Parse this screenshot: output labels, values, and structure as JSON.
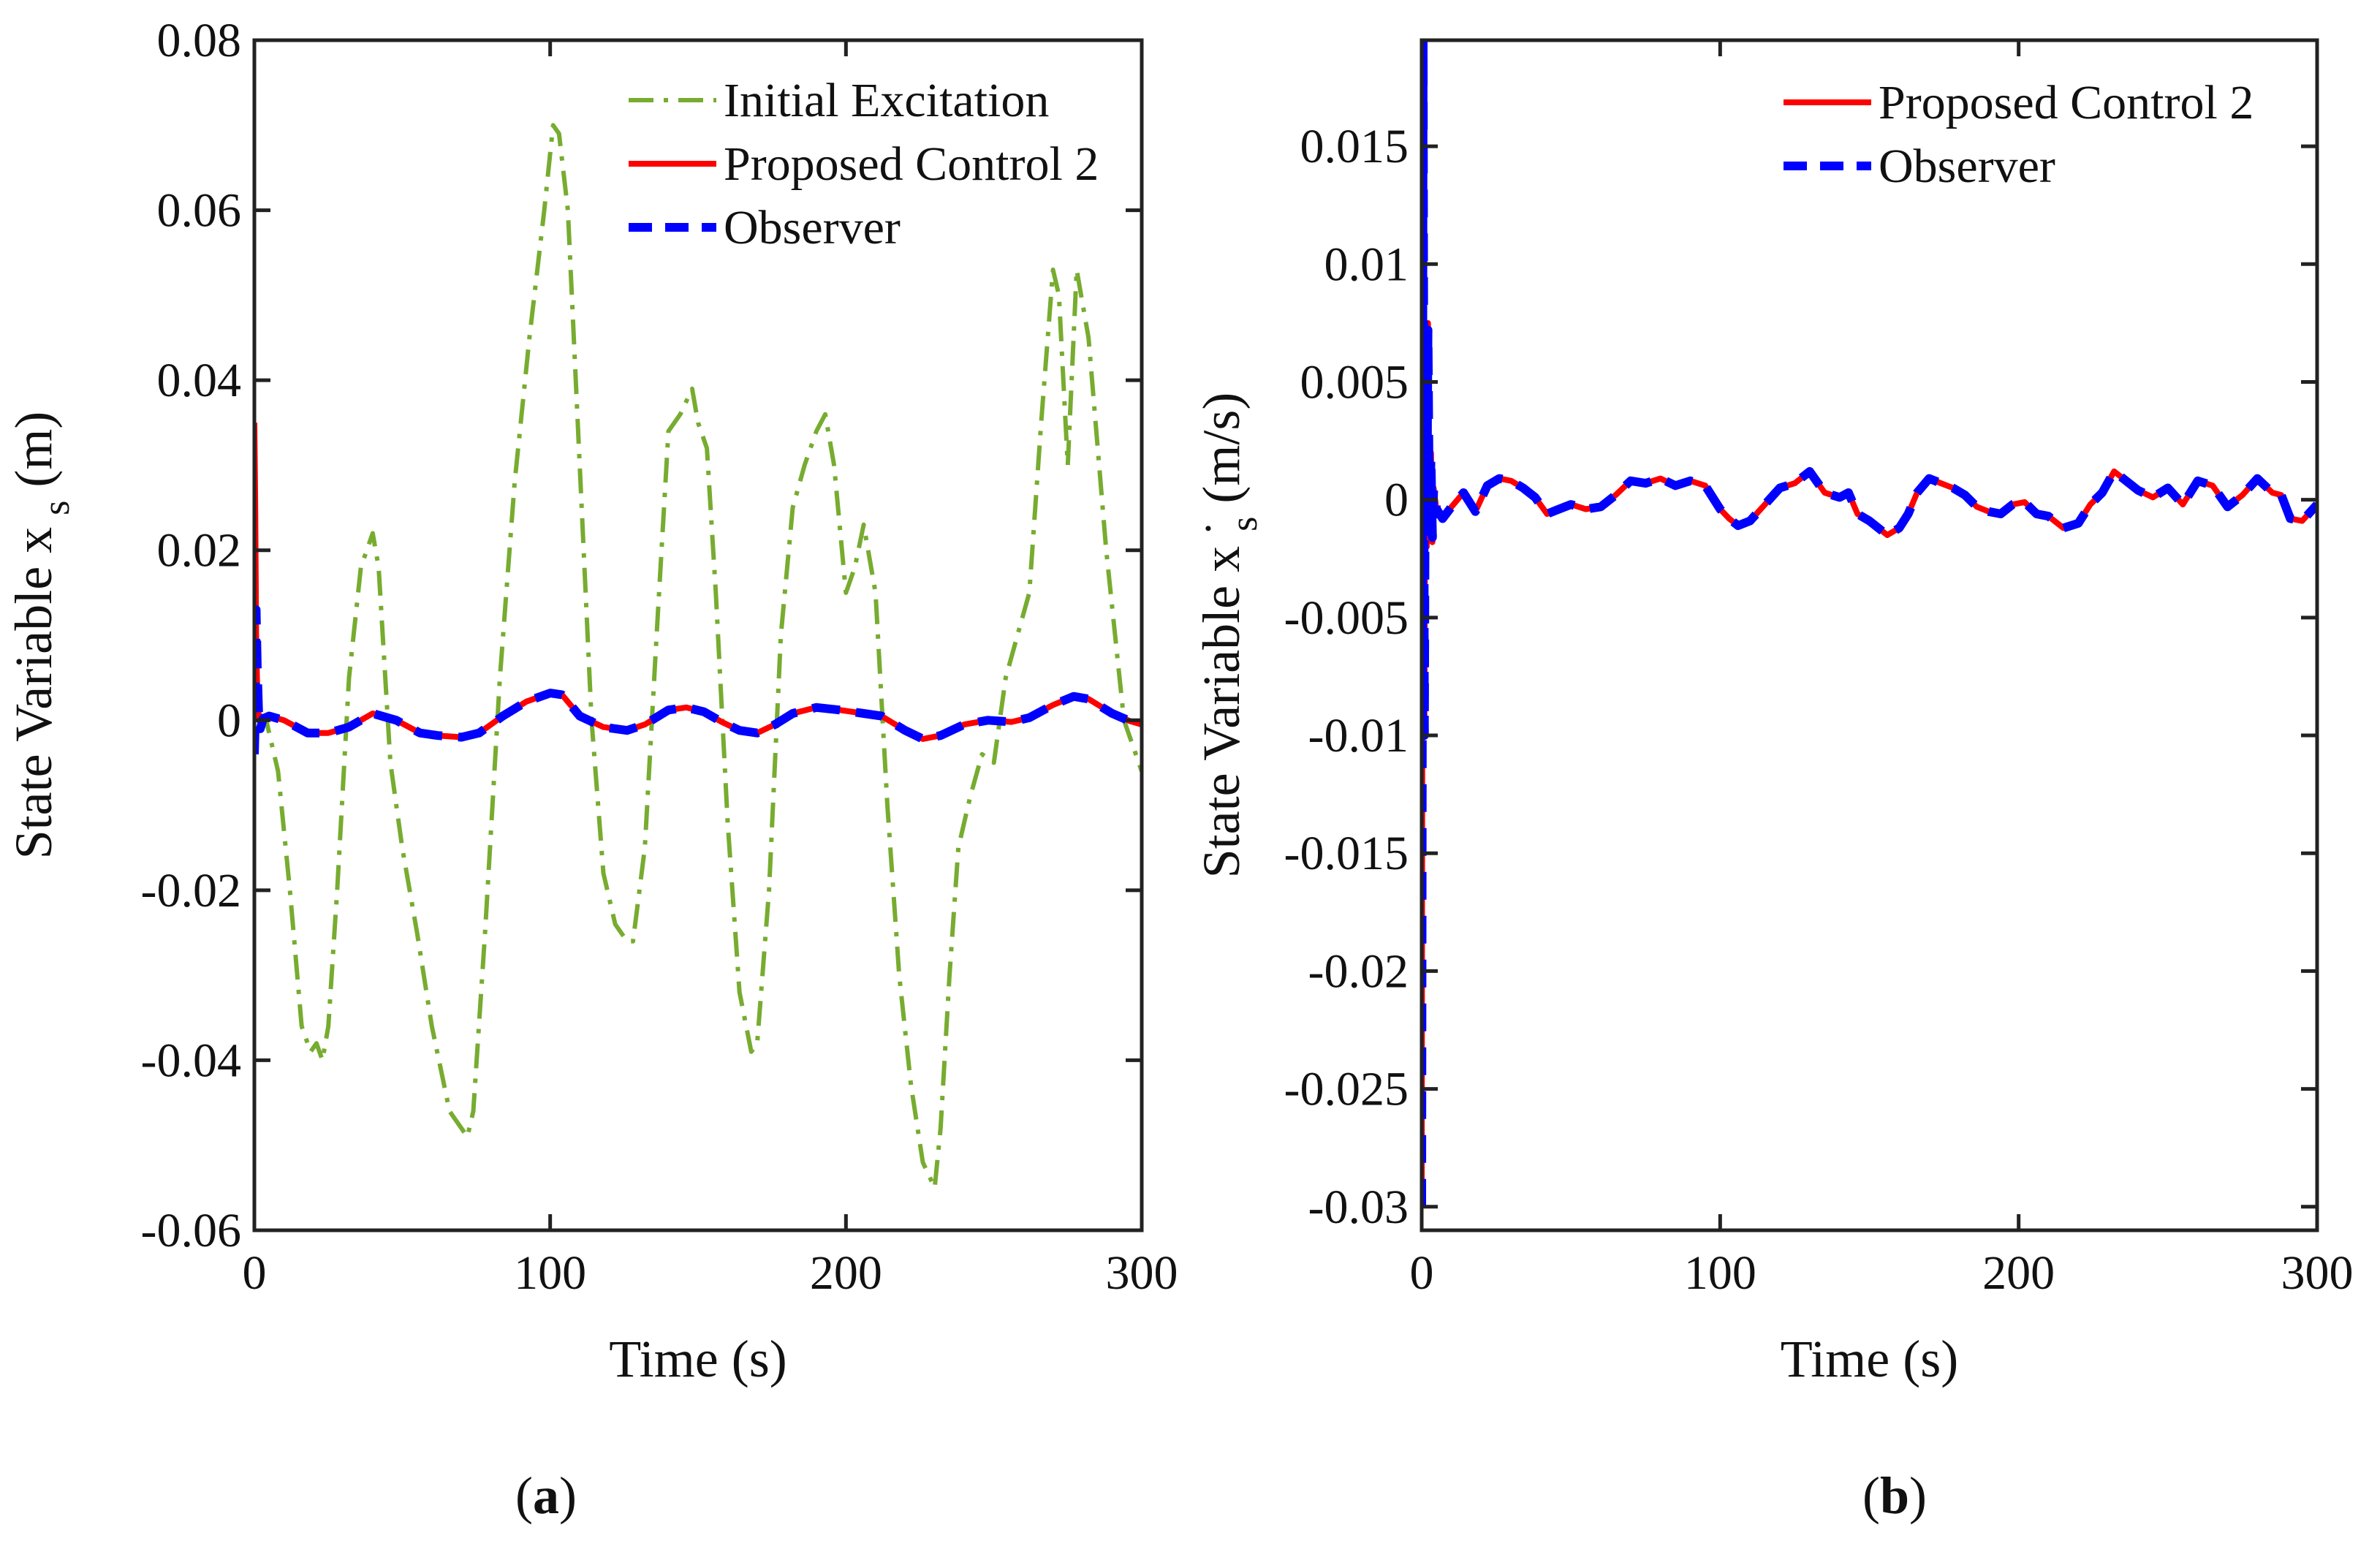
{
  "chart_data": [
    {
      "id": "a",
      "type": "line",
      "panel_label": "a",
      "xlabel": "Time (s)",
      "ylabel": "State Variable x",
      "ylabel_sub": "s",
      "ylabel_unit": " (m)",
      "xlim": [
        0,
        300
      ],
      "ylim": [
        -0.06,
        0.08
      ],
      "xticks": [
        0,
        100,
        200,
        300
      ],
      "xtick_labels": [
        "0",
        "100",
        "200",
        "300"
      ],
      "yticks": [
        -0.06,
        -0.04,
        -0.02,
        0,
        0.02,
        0.04,
        0.06,
        0.08
      ],
      "ytick_labels": [
        "-0.06",
        "-0.04",
        "-0.02",
        "0",
        "0.02",
        "0.04",
        "0.06",
        "0.08"
      ],
      "legend_position": "top-right",
      "series": [
        {
          "name": "Initial Excitation",
          "color": "#77ac30",
          "style": "dashdot",
          "x": [
            0,
            4,
            8,
            12,
            16,
            19,
            21,
            23,
            25,
            28,
            32,
            36,
            40,
            42,
            46,
            50,
            55,
            60,
            66,
            70,
            72,
            74,
            78,
            83,
            88,
            93,
            98,
            101,
            103,
            106,
            110,
            114,
            118,
            122,
            126,
            128,
            132,
            136,
            140,
            144,
            148,
            150,
            153,
            156,
            160,
            164,
            168,
            170,
            174,
            178,
            182,
            186,
            190,
            193,
            196,
            200,
            203,
            206,
            210,
            214,
            218,
            222,
            226,
            230,
            232,
            235,
            238,
            242,
            246,
            250,
            254,
            258,
            262,
            266,
            270,
            272,
            275,
            278,
            282,
            288,
            294,
            297,
            300
          ],
          "y": [
            0.0,
            0.0,
            -0.006,
            -0.02,
            -0.036,
            -0.039,
            -0.038,
            -0.04,
            -0.036,
            -0.02,
            0.005,
            0.018,
            0.022,
            0.018,
            -0.005,
            -0.015,
            -0.025,
            -0.036,
            -0.046,
            -0.048,
            -0.049,
            -0.046,
            -0.025,
            0.005,
            0.028,
            0.045,
            0.06,
            0.07,
            0.069,
            0.06,
            0.03,
            0.0,
            -0.018,
            -0.024,
            -0.026,
            -0.026,
            -0.015,
            0.01,
            0.034,
            0.036,
            0.039,
            0.035,
            0.032,
            0.015,
            -0.012,
            -0.032,
            -0.039,
            -0.038,
            -0.02,
            0.01,
            0.025,
            0.03,
            0.034,
            0.036,
            0.03,
            0.015,
            0.018,
            0.023,
            0.015,
            -0.01,
            -0.03,
            -0.043,
            -0.052,
            -0.055,
            -0.048,
            -0.03,
            -0.015,
            -0.009,
            -0.004,
            -0.005,
            0.005,
            0.01,
            0.015,
            0.035,
            0.053,
            0.05,
            0.03,
            0.053,
            0.045,
            0.02,
            0.0,
            -0.003,
            -0.006
          ]
        },
        {
          "name": "Proposed Control 2",
          "color": "#ff0000",
          "style": "solid",
          "x": [
            0,
            0.3,
            0.6,
            1,
            1.5,
            2,
            3,
            5,
            10,
            18,
            25,
            32,
            40,
            48,
            56,
            62,
            70,
            76,
            84,
            92,
            100,
            104,
            110,
            118,
            126,
            132,
            140,
            146,
            152,
            158,
            164,
            170,
            176,
            182,
            190,
            198,
            206,
            212,
            220,
            226,
            232,
            240,
            248,
            256,
            262,
            270,
            277,
            282,
            290,
            296,
            300
          ],
          "y": [
            0.035,
            0.025,
            0.01,
            0.003,
            0.0,
            0.0005,
            0.0002,
            0.0005,
            0.0,
            -0.0015,
            -0.0015,
            -0.0008,
            0.0008,
            0.0,
            -0.0015,
            -0.0018,
            -0.002,
            -0.0015,
            0.0005,
            0.0022,
            0.0032,
            0.003,
            0.0005,
            -0.0008,
            -0.0012,
            -0.0005,
            0.0012,
            0.0015,
            0.001,
            -0.0002,
            -0.0012,
            -0.0015,
            -0.0005,
            0.0008,
            0.0015,
            0.0012,
            0.0008,
            0.0005,
            -0.0012,
            -0.0022,
            -0.0018,
            -0.0005,
            0.0,
            -0.0002,
            0.0003,
            0.0018,
            0.0028,
            0.0025,
            0.0008,
            -0.0001,
            -0.0005
          ]
        },
        {
          "name": "Observer",
          "color": "#0000ff",
          "style": "dashed",
          "x": [
            0,
            0.3,
            0.6,
            1,
            1.5,
            2,
            3,
            5,
            10,
            18,
            25,
            32,
            40,
            48,
            56,
            62,
            70,
            76,
            84,
            92,
            100,
            104,
            110,
            118,
            126,
            132,
            140,
            146,
            152,
            158,
            164,
            170,
            176,
            182,
            190,
            198,
            206,
            212,
            220,
            226,
            232,
            240,
            248,
            256,
            262,
            270,
            277,
            282,
            290,
            296,
            300
          ],
          "y": [
            -0.004,
            0.0,
            0.013,
            0.006,
            0.0,
            -0.001,
            0.0002,
            0.0005,
            0.0,
            -0.0015,
            -0.0015,
            -0.0008,
            0.0008,
            0.0,
            -0.0015,
            -0.0018,
            -0.002,
            -0.0015,
            0.0005,
            0.0022,
            0.0032,
            0.003,
            0.0005,
            -0.0008,
            -0.0012,
            -0.0005,
            0.0012,
            0.0015,
            0.001,
            -0.0002,
            -0.0012,
            -0.0015,
            -0.0005,
            0.0008,
            0.0015,
            0.0012,
            0.0008,
            0.0005,
            -0.0012,
            -0.0022,
            -0.0018,
            -0.0005,
            0.0,
            -0.0002,
            0.0003,
            0.0018,
            0.0028,
            0.0025,
            0.0008,
            -0.0001,
            -0.0005
          ]
        }
      ]
    },
    {
      "id": "b",
      "type": "line",
      "panel_label": "b",
      "xlabel": "Time (s)",
      "ylabel": "State Variable x",
      "ylabel_sub": "s",
      "ylabel_sup": "·",
      "ylabel_unit": " (m/s)",
      "xlim": [
        0,
        300
      ],
      "ylim": [
        -0.031,
        0.0195
      ],
      "xticks": [
        0,
        100,
        200,
        300
      ],
      "xtick_labels": [
        "0",
        "100",
        "200",
        "300"
      ],
      "yticks": [
        -0.03,
        -0.025,
        -0.02,
        -0.015,
        -0.01,
        -0.005,
        0,
        0.005,
        0.01,
        0.015
      ],
      "ytick_labels": [
        "-0.03",
        "-0.025",
        "-0.02",
        "-0.015",
        "-0.01",
        "-0.005",
        "0",
        "0.005",
        "0.01",
        "0.015"
      ],
      "legend_position": "top-right",
      "series": [
        {
          "name": "Proposed Control 2",
          "color": "#ff0000",
          "style": "solid",
          "x": [
            0,
            0.5,
            0.9,
            1.3,
            1.7,
            2.1,
            2.6,
            3.1,
            3.6,
            4,
            5,
            7,
            10,
            14,
            18,
            22,
            26,
            30,
            34,
            38,
            42,
            46,
            50,
            55,
            60,
            65,
            70,
            75,
            80,
            85,
            90,
            95,
            100,
            103,
            106,
            110,
            115,
            120,
            125,
            130,
            135,
            140,
            143,
            146,
            150,
            153,
            156,
            160,
            163,
            166,
            170,
            174,
            178,
            182,
            186,
            190,
            194,
            198,
            202,
            206,
            210,
            215,
            220,
            224,
            228,
            232,
            236,
            240,
            245,
            250,
            255,
            260,
            265,
            270,
            275,
            280,
            285,
            288,
            291,
            295,
            300
          ],
          "y": [
            -0.03,
            0.0195,
            -0.01,
            0.007,
            -0.002,
            0.0075,
            -0.001,
            0.002,
            -0.0018,
            0.0005,
            -0.0005,
            -0.0008,
            -0.0003,
            0.0003,
            -0.0005,
            0.0006,
            0.0009,
            0.0008,
            0.0005,
            0.0001,
            -0.0006,
            -0.0004,
            -0.0002,
            -0.0004,
            -0.0003,
            0.0002,
            0.0008,
            0.0007,
            0.0009,
            0.0006,
            0.0008,
            0.0006,
            -0.0004,
            -0.0008,
            -0.0011,
            -0.0009,
            -0.0002,
            0.0005,
            0.0007,
            0.0012,
            0.0003,
            0.0001,
            0.0003,
            -0.0006,
            -0.0009,
            -0.0012,
            -0.0015,
            -0.0012,
            -0.0006,
            0.0003,
            0.0009,
            0.0007,
            0.0005,
            0.0002,
            -0.0003,
            -0.0005,
            -0.0006,
            -0.0002,
            -0.0001,
            -0.0006,
            -0.0007,
            -0.0012,
            -0.001,
            -0.0002,
            0.0003,
            0.0012,
            0.0008,
            0.0004,
            0.0001,
            0.0005,
            -0.0002,
            0.0008,
            0.0006,
            -0.0003,
            0.0002,
            0.0009,
            0.0003,
            0.0002,
            -0.0008,
            -0.0009,
            -0.0002
          ]
        },
        {
          "name": "Observer",
          "color": "#0000ff",
          "style": "dashed",
          "x": [
            0,
            0.5,
            0.9,
            1.3,
            1.7,
            2.1,
            2.6,
            3.1,
            3.6,
            4,
            5,
            7,
            10,
            14,
            18,
            22,
            26,
            30,
            34,
            38,
            42,
            46,
            50,
            55,
            60,
            65,
            70,
            75,
            80,
            85,
            90,
            95,
            100,
            103,
            106,
            110,
            115,
            120,
            125,
            130,
            135,
            140,
            143,
            146,
            150,
            153,
            156,
            160,
            163,
            166,
            170,
            174,
            178,
            182,
            186,
            190,
            194,
            198,
            202,
            206,
            210,
            215,
            220,
            224,
            228,
            232,
            236,
            240,
            245,
            250,
            255,
            260,
            265,
            270,
            275,
            280,
            285,
            288,
            291,
            295,
            300
          ],
          "y": [
            -0.03,
            0.0195,
            -0.01,
            0.0065,
            -0.0018,
            0.0072,
            -0.0012,
            0.0018,
            -0.0016,
            0.0004,
            -0.0004,
            -0.0008,
            -0.0003,
            0.0003,
            -0.0005,
            0.0006,
            0.0009,
            0.0008,
            0.0005,
            0.0001,
            -0.0006,
            -0.0004,
            -0.0002,
            -0.0004,
            -0.0003,
            0.0002,
            0.0008,
            0.0007,
            0.0009,
            0.0006,
            0.0008,
            0.0006,
            -0.0004,
            -0.0008,
            -0.0011,
            -0.0009,
            -0.0002,
            0.0005,
            0.0007,
            0.0012,
            0.0003,
            0.0001,
            0.0003,
            -0.0006,
            -0.0009,
            -0.0012,
            -0.0015,
            -0.0012,
            -0.0006,
            0.0003,
            0.0009,
            0.0007,
            0.0005,
            0.0002,
            -0.0003,
            -0.0005,
            -0.0006,
            -0.0002,
            -0.0001,
            -0.0006,
            -0.0007,
            -0.0012,
            -0.001,
            -0.0002,
            0.0003,
            0.0012,
            0.0008,
            0.0004,
            0.0001,
            0.0005,
            -0.0002,
            0.0008,
            0.0006,
            -0.0003,
            0.0002,
            0.0009,
            0.0003,
            0.0002,
            -0.0008,
            -0.0009,
            -0.0002
          ]
        }
      ]
    }
  ]
}
